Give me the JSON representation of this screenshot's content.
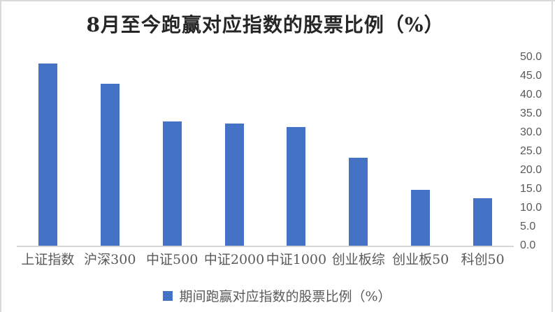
{
  "chart_data": {
    "type": "bar",
    "title": "8月至今跑赢对应指数的股票比例（%）",
    "categories": [
      "上证指数",
      "沪深300",
      "中证500",
      "中证2000",
      "中证1000",
      "创业板综",
      "创业板50",
      "科创50"
    ],
    "values": [
      48.3,
      43.0,
      32.9,
      32.4,
      31.5,
      23.3,
      14.8,
      12.6
    ],
    "series_name": "期间跑赢对应指数的股票比例（%）",
    "xlabel": "",
    "ylabel": "",
    "ylim": [
      0,
      50
    ],
    "ytick_step": 5,
    "ytick_labels": [
      "50.0",
      "45.0",
      "40.0",
      "35.0",
      "30.0",
      "25.0",
      "20.0",
      "15.0",
      "10.0",
      "5.0",
      "0.0"
    ],
    "yaxis_side": "right",
    "grid": false,
    "legend_position": "bottom",
    "bar_color": "#4472C4",
    "axis_line_color": "#D6D6D6",
    "tick_text_color": "#595959",
    "title_color": "#262626"
  }
}
